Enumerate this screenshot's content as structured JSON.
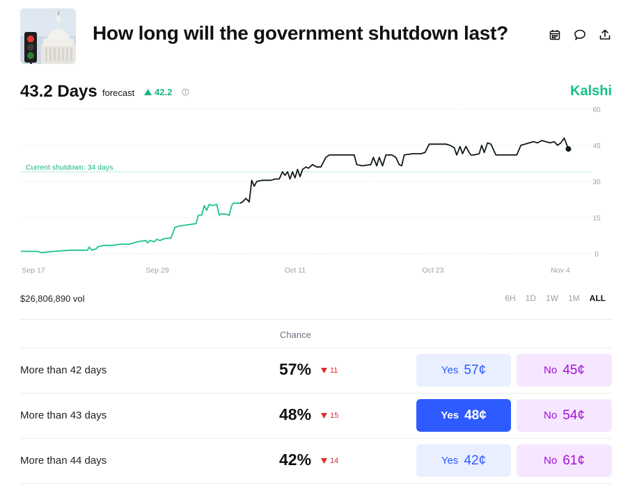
{
  "header": {
    "title": "How long will the government shutdown last?",
    "icons": [
      "calendar-icon",
      "comment-icon",
      "share-icon"
    ]
  },
  "forecast": {
    "value": "43.2 Days",
    "label": "forecast",
    "change": "42.2",
    "change_direction": "up",
    "change_color": "#16b57f",
    "brand": "Kalshi",
    "brand_color": "#14c08a"
  },
  "chart_data": {
    "type": "line",
    "x_ticks": [
      "Sep 17",
      "Sep 29",
      "Oct 11",
      "Oct 23",
      "Nov 4"
    ],
    "y_ticks": [
      0,
      15,
      30,
      45,
      60
    ],
    "ylim": [
      0,
      60
    ],
    "reference_line": {
      "value": 34,
      "label": "Current shutdown: 34 days"
    },
    "grid": true,
    "colors": {
      "before": "#1bc28a",
      "after": "#0f1a14"
    },
    "split_x": 26.5,
    "points": [
      [
        0,
        1
      ],
      [
        2,
        1
      ],
      [
        2.5,
        0.5
      ],
      [
        4,
        1
      ],
      [
        6,
        1.5
      ],
      [
        8,
        1.5
      ],
      [
        8.2,
        2.8
      ],
      [
        8.5,
        1.5
      ],
      [
        9,
        2
      ],
      [
        9.3,
        3
      ],
      [
        10,
        3.5
      ],
      [
        11,
        3.5
      ],
      [
        12,
        4
      ],
      [
        13,
        4
      ],
      [
        14,
        5
      ],
      [
        15,
        5.5
      ],
      [
        15.2,
        4.5
      ],
      [
        15.5,
        5.5
      ],
      [
        16,
        5
      ],
      [
        16.3,
        6
      ],
      [
        16.7,
        5.5
      ],
      [
        17,
        6
      ],
      [
        17.5,
        6.5
      ],
      [
        18,
        6.5
      ],
      [
        18.5,
        11
      ],
      [
        19,
        11.5
      ],
      [
        20,
        12
      ],
      [
        21,
        12.5
      ],
      [
        21.3,
        16
      ],
      [
        21.7,
        16
      ],
      [
        22,
        20
      ],
      [
        22.3,
        18
      ],
      [
        22.6,
        20.5
      ],
      [
        23,
        20
      ],
      [
        23.5,
        20.5
      ],
      [
        23.8,
        16
      ],
      [
        24,
        16.5
      ],
      [
        24.5,
        16.5
      ],
      [
        25,
        16
      ],
      [
        25.3,
        20
      ],
      [
        25.5,
        21
      ],
      [
        26.3,
        21
      ],
      [
        26.6,
        21.5
      ],
      [
        27,
        23
      ],
      [
        27.4,
        21.5
      ],
      [
        27.7,
        30.5
      ],
      [
        28,
        28
      ],
      [
        28.3,
        30
      ],
      [
        29,
        30.5
      ],
      [
        30,
        30.5
      ],
      [
        30.5,
        31
      ],
      [
        31,
        31
      ],
      [
        31.4,
        34
      ],
      [
        31.7,
        32.5
      ],
      [
        32,
        34
      ],
      [
        32.3,
        31
      ],
      [
        32.6,
        34
      ],
      [
        32.9,
        31.5
      ],
      [
        33.2,
        35
      ],
      [
        33.5,
        32
      ],
      [
        33.8,
        35
      ],
      [
        34.2,
        36
      ],
      [
        34.5,
        35.5
      ],
      [
        35,
        37
      ],
      [
        35.5,
        36
      ],
      [
        36,
        36
      ],
      [
        36.6,
        40
      ],
      [
        37,
        41
      ],
      [
        38,
        41
      ],
      [
        39,
        41
      ],
      [
        40,
        41
      ],
      [
        40.3,
        37
      ],
      [
        41,
        36.5
      ],
      [
        42,
        37
      ],
      [
        42.3,
        40
      ],
      [
        42.7,
        36.5
      ],
      [
        43,
        40
      ],
      [
        43.4,
        36.5
      ],
      [
        43.8,
        41
      ],
      [
        44.5,
        41
      ],
      [
        45,
        40
      ],
      [
        45.4,
        37
      ],
      [
        45.7,
        36.5
      ],
      [
        46,
        41
      ],
      [
        47,
        41.5
      ],
      [
        48,
        41.5
      ],
      [
        48.5,
        42
      ],
      [
        49,
        45.5
      ],
      [
        50,
        45.5
      ],
      [
        51,
        45.5
      ],
      [
        51.5,
        45
      ],
      [
        52,
        44
      ],
      [
        52.3,
        41
      ],
      [
        52.7,
        44.5
      ],
      [
        53,
        41.5
      ],
      [
        53.4,
        44.5
      ],
      [
        53.8,
        42
      ],
      [
        54,
        41
      ],
      [
        54.4,
        41
      ],
      [
        55,
        41.5
      ],
      [
        55.3,
        45
      ],
      [
        55.6,
        42
      ],
      [
        56,
        46
      ],
      [
        56.4,
        45.5
      ],
      [
        57,
        41
      ],
      [
        58,
        41
      ],
      [
        59,
        41
      ],
      [
        59.5,
        41
      ],
      [
        60,
        45
      ],
      [
        60.5,
        45.5
      ],
      [
        61.5,
        46.5
      ],
      [
        62,
        46
      ],
      [
        62.5,
        47
      ],
      [
        63,
        46.5
      ],
      [
        63.5,
        46
      ],
      [
        64,
        46.5
      ],
      [
        64.4,
        45
      ],
      [
        64.8,
        46
      ],
      [
        65.2,
        48
      ],
      [
        65.7,
        43.5
      ]
    ],
    "last_point": [
      65.7,
      43.5
    ]
  },
  "volume": "$26,806,890 vol",
  "ranges": [
    "6H",
    "1D",
    "1W",
    "1M",
    "ALL"
  ],
  "active_range": "ALL",
  "table": {
    "chance_header": "Chance",
    "rows": [
      {
        "label": "More than 42 days",
        "chance": "57%",
        "change": "11",
        "yes_word": "Yes",
        "yes_price": "57¢",
        "no_word": "No",
        "no_price": "45¢",
        "yes_selected": false
      },
      {
        "label": "More than 43 days",
        "chance": "48%",
        "change": "15",
        "yes_word": "Yes",
        "yes_price": "48¢",
        "no_word": "No",
        "no_price": "54¢",
        "yes_selected": true
      },
      {
        "label": "More than 44 days",
        "chance": "42%",
        "change": "14",
        "yes_word": "Yes",
        "yes_price": "42¢",
        "no_word": "No",
        "no_price": "61¢",
        "yes_selected": false
      }
    ]
  }
}
